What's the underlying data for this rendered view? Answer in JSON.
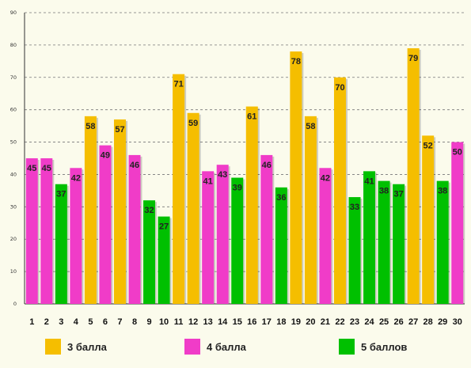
{
  "chart_data": {
    "type": "bar",
    "categories": [
      "1",
      "2",
      "3",
      "4",
      "5",
      "6",
      "7",
      "8",
      "9",
      "10",
      "11",
      "12",
      "13",
      "14",
      "15",
      "16",
      "17",
      "18",
      "19",
      "20",
      "21",
      "22",
      "23",
      "24",
      "25",
      "26",
      "27",
      "28",
      "29",
      "30"
    ],
    "values": [
      45,
      45,
      37,
      42,
      58,
      49,
      57,
      46,
      32,
      27,
      71,
      59,
      41,
      43,
      39,
      61,
      46,
      36,
      78,
      58,
      42,
      70,
      33,
      41,
      38,
      37,
      79,
      52,
      38,
      50
    ],
    "grades": [
      "4 балла",
      "4 балла",
      "5 баллов",
      "4 балла",
      "3 балла",
      "4 балла",
      "3 балла",
      "4 балла",
      "5 баллов",
      "5 баллов",
      "3 балла",
      "3 балла",
      "4 балла",
      "4 балла",
      "5 баллов",
      "3 балла",
      "4 балла",
      "5 баллов",
      "3 балла",
      "3 балла",
      "4 балла",
      "3 балла",
      "5 баллов",
      "5 баллов",
      "5 баллов",
      "5 баллов",
      "3 балла",
      "3 балла",
      "5 баллов",
      "4 балла"
    ],
    "ylim": [
      0,
      90
    ],
    "yticks": [
      0,
      10,
      20,
      30,
      40,
      50,
      60,
      70,
      80,
      90
    ],
    "grid": true,
    "legend_position": "bottom",
    "legend": [
      {
        "name": "3 балла",
        "color": "#f5be00"
      },
      {
        "name": "4 балла",
        "color": "#f03cc8"
      },
      {
        "name": "5 баллов",
        "color": "#00c000"
      }
    ]
  }
}
